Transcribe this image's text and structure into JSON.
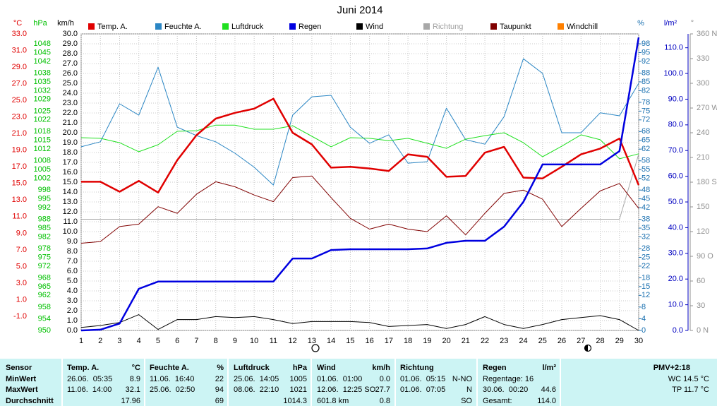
{
  "chart_data": {
    "type": "line",
    "title": "Juni 2014",
    "x": [
      1,
      2,
      3,
      4,
      5,
      6,
      7,
      8,
      9,
      10,
      11,
      12,
      13,
      14,
      15,
      16,
      17,
      18,
      19,
      20,
      21,
      22,
      23,
      24,
      25,
      26,
      27,
      28,
      29,
      30
    ],
    "xlim": [
      1,
      30
    ],
    "grid": true,
    "axes": [
      {
        "label": "°C",
        "color": "#e00000",
        "ylim": [
          -2.7,
          33
        ],
        "ticks": [
          {
            "value": -1,
            "label": "-1.0"
          },
          {
            "value": 1,
            "label": "1.0"
          },
          {
            "value": 3,
            "label": "3.0"
          },
          {
            "value": 5,
            "label": "5.0"
          },
          {
            "value": 7,
            "label": "7.0"
          },
          {
            "value": 9,
            "label": "9.0"
          },
          {
            "value": 11,
            "label": "11.0"
          },
          {
            "value": 13,
            "label": "13.0"
          },
          {
            "value": 15,
            "label": "15.0"
          },
          {
            "value": 17,
            "label": "17.0"
          },
          {
            "value": 19,
            "label": "19.0"
          },
          {
            "value": 21,
            "label": "21.0"
          },
          {
            "value": 23,
            "label": "23.0"
          },
          {
            "value": 25,
            "label": "25.0"
          },
          {
            "value": 27,
            "label": "27.0"
          },
          {
            "value": 29,
            "label": "29.0"
          },
          {
            "value": 31,
            "label": "31.0"
          },
          {
            "value": 33,
            "label": "33.0"
          }
        ]
      },
      {
        "label": "hPa",
        "color": "#00c000",
        "ylim": [
          950,
          1051.4
        ],
        "ticks": [
          950,
          954,
          958,
          962,
          965,
          968,
          972,
          975,
          978,
          982,
          985,
          988,
          992,
          995,
          998,
          1002,
          1005,
          1008,
          1012,
          1015,
          1018,
          1022,
          1025,
          1029,
          1032,
          1035,
          1038,
          1042,
          1045,
          1048
        ]
      },
      {
        "label": "km/h",
        "color": "#000000",
        "ylim": [
          0,
          30
        ],
        "ticks": [
          {
            "value": 0,
            "label": "0.0"
          },
          {
            "value": 1,
            "label": "1.0"
          },
          {
            "value": 2,
            "label": "2.0"
          },
          {
            "value": 3,
            "label": "3.0"
          },
          {
            "value": 4,
            "label": "4.0"
          },
          {
            "value": 5,
            "label": "5.0"
          },
          {
            "value": 6,
            "label": "6.0"
          },
          {
            "value": 7,
            "label": "7.0"
          },
          {
            "value": 8,
            "label": "8.0"
          },
          {
            "value": 9,
            "label": "9.0"
          },
          {
            "value": 10,
            "label": "10.0"
          },
          {
            "value": 11,
            "label": "11.0"
          },
          {
            "value": 12,
            "label": "12.0"
          },
          {
            "value": 13,
            "label": "13.0"
          },
          {
            "value": 14,
            "label": "14.0"
          },
          {
            "value": 15,
            "label": "15.0"
          },
          {
            "value": 16,
            "label": "16.0"
          },
          {
            "value": 17,
            "label": "17.0"
          },
          {
            "value": 18,
            "label": "18.0"
          },
          {
            "value": 19,
            "label": "19.0"
          },
          {
            "value": 20,
            "label": "20.0"
          },
          {
            "value": 21,
            "label": "21.0"
          },
          {
            "value": 22,
            "label": "22.0"
          },
          {
            "value": 23,
            "label": "23.0"
          },
          {
            "value": 24,
            "label": "24.0"
          },
          {
            "value": 25,
            "label": "25.0"
          },
          {
            "value": 26,
            "label": "26.0"
          },
          {
            "value": 27,
            "label": "27.0"
          },
          {
            "value": 28,
            "label": "28.0"
          },
          {
            "value": 29,
            "label": "29.0"
          },
          {
            "value": 30,
            "label": "30.0"
          }
        ]
      },
      {
        "label": "%",
        "color": "#1a70b0",
        "ylim": [
          0,
          101.4
        ],
        "ticks": [
          0,
          4,
          8,
          12,
          15,
          18,
          22,
          25,
          28,
          32,
          35,
          38,
          42,
          45,
          48,
          52,
          55,
          58,
          62,
          65,
          68,
          72,
          75,
          78,
          82,
          85,
          88,
          92,
          95,
          98
        ]
      },
      {
        "label": "l/m²",
        "color": "#0000c0",
        "ylim": [
          0,
          115.4
        ],
        "ticks": [
          {
            "value": 0,
            "label": "0.0"
          },
          {
            "value": 10,
            "label": "10.0"
          },
          {
            "value": 20,
            "label": "20.0"
          },
          {
            "value": 30,
            "label": "30.0"
          },
          {
            "value": 40,
            "label": "40.0"
          },
          {
            "value": 50,
            "label": "50.0"
          },
          {
            "value": 60,
            "label": "60.0"
          },
          {
            "value": 70,
            "label": "70.0"
          },
          {
            "value": 80,
            "label": "80.0"
          },
          {
            "value": 90,
            "label": "90.0"
          },
          {
            "value": 100,
            "label": "100.0"
          },
          {
            "value": 110,
            "label": "110.0"
          }
        ]
      },
      {
        "label": "°",
        "color": "#909090",
        "ylim": [
          0,
          360
        ],
        "ticks": [
          {
            "value": 0,
            "label": "0 N"
          },
          30,
          60,
          {
            "value": 90,
            "label": "90 O"
          },
          120,
          150,
          {
            "value": 180,
            "label": "180 S"
          },
          210,
          240,
          {
            "value": 270,
            "label": "270 W"
          },
          300,
          330,
          {
            "value": 360,
            "label": "360 N"
          }
        ]
      }
    ],
    "series": [
      {
        "name": "Temp. A.",
        "color": "#e00000",
        "axis": 0,
        "values": [
          15.2,
          15.2,
          14.0,
          15.3,
          13.9,
          17.8,
          20.8,
          22.8,
          23.5,
          24.0,
          25.2,
          21.1,
          19.7,
          16.9,
          17.0,
          16.8,
          16.5,
          18.5,
          18.2,
          15.8,
          15.9,
          18.7,
          19.4,
          15.7,
          15.6,
          17.0,
          18.5,
          19.2,
          20.4,
          14.8
        ]
      },
      {
        "name": "Feuchte A.",
        "color": "#2a86c4",
        "axis": 3,
        "values": [
          62.8,
          64.5,
          77.5,
          73.6,
          90.0,
          69.5,
          66.6,
          64.5,
          60.6,
          55.8,
          49.7,
          73.6,
          79.9,
          80.4,
          69.5,
          64.0,
          66.9,
          57.2,
          57.7,
          76.0,
          65.2,
          63.7,
          73.1,
          92.9,
          87.9,
          67.6,
          67.6,
          74.4,
          73.4,
          84.5
        ]
      },
      {
        "name": "Luftdruck",
        "color": "#20e020",
        "axis": 1,
        "values": [
          1015.9,
          1015.7,
          1014.2,
          1011.1,
          1013.5,
          1018.1,
          1018.3,
          1020.2,
          1020.2,
          1018.8,
          1018.8,
          1020.0,
          1016.4,
          1012.8,
          1015.9,
          1015.7,
          1014.9,
          1015.7,
          1014.0,
          1012.3,
          1015.4,
          1016.6,
          1017.6,
          1014.2,
          1009.4,
          1013.0,
          1016.9,
          1015.2,
          1008.7,
          1010.4
        ]
      },
      {
        "name": "Regen",
        "color": "#0000e0",
        "axis": 4,
        "values": [
          0.0,
          0.3,
          2.7,
          16.2,
          19.0,
          19.0,
          19.0,
          19.0,
          19.0,
          19.0,
          19.0,
          28.0,
          28.0,
          31.3,
          31.6,
          31.6,
          31.6,
          31.6,
          31.9,
          34.1,
          34.9,
          34.9,
          40.4,
          50.0,
          64.6,
          64.6,
          64.6,
          64.6,
          69.8,
          114.0
        ]
      },
      {
        "name": "Wind",
        "color": "#000000",
        "axis": 2,
        "values": [
          0.3,
          0.5,
          0.8,
          1.6,
          0.1,
          1.1,
          1.1,
          1.4,
          1.3,
          1.4,
          1.1,
          0.7,
          0.9,
          0.9,
          0.9,
          0.8,
          0.4,
          0.5,
          0.6,
          0.2,
          0.6,
          1.4,
          0.6,
          0.2,
          0.6,
          1.1,
          1.3,
          1.5,
          1.1,
          0.0
        ]
      },
      {
        "name": "Richtung",
        "color": "#a8a8a8",
        "axis": 5,
        "values": [
          135,
          135,
          135,
          135,
          135,
          135,
          135,
          135,
          135,
          135,
          135,
          135,
          135,
          135,
          135,
          135,
          135,
          135,
          135,
          135,
          135,
          135,
          135,
          135,
          135,
          135,
          135,
          135,
          135,
          214
        ]
      },
      {
        "name": "Taupunkt",
        "color": "#800000",
        "axis": 0,
        "values": [
          7.8,
          8.0,
          9.8,
          10.1,
          12.2,
          11.4,
          13.7,
          15.2,
          14.6,
          13.6,
          12.8,
          15.7,
          15.9,
          13.3,
          10.8,
          9.5,
          10.1,
          9.5,
          9.2,
          11.1,
          8.8,
          11.4,
          13.8,
          14.2,
          13.1,
          9.8,
          12.0,
          14.1,
          15.0,
          12.0
        ]
      },
      {
        "name": "Windchill",
        "color": "#ff8000",
        "axis": 0,
        "values": [
          15.2,
          15.2,
          14.0,
          15.3,
          13.9,
          17.8,
          20.8,
          22.8,
          23.5,
          24.0,
          25.2,
          21.1,
          19.7,
          16.9,
          17.0,
          16.8,
          16.5,
          18.5,
          18.2,
          15.8,
          15.9,
          18.7,
          19.4,
          15.7,
          15.6,
          17.0,
          18.5,
          19.2,
          20.4,
          14.8
        ]
      }
    ]
  },
  "table": {
    "rows": [
      [
        "Sensor",
        "Temp. A.",
        "°C",
        "Feuchte A.",
        "%",
        "Luftdruck",
        "hPa",
        "Wind",
        "km/h",
        "Richtung",
        null,
        "Regen",
        "l/m²",
        "PMV+2:18"
      ],
      [
        "MinWert",
        "26.06.  05:35",
        "8.9",
        "11.06.  16:40",
        "22",
        "25.06.  14:05",
        "1005",
        "01.06.  01:00",
        "0.0",
        "01.06.  05:15",
        "N-NO",
        "Regentage: 16",
        null,
        "WC 14.5 °C"
      ],
      [
        "MaxWert",
        "11.06.  14:00",
        "32.1",
        "25.06.  02:50",
        "94",
        "08.06.  22:10",
        "1021",
        "12.06.  12:25 SO",
        "27.7",
        "01.06.  07:05",
        "N",
        "30.06.  00:20",
        "44.6",
        "TP 11.7 °C"
      ],
      [
        "Durchschnitt",
        null,
        "17.96",
        null,
        "69",
        null,
        "1014.3",
        "601.8 km",
        "0.8",
        null,
        "SO",
        "Gesamt:",
        "114.0",
        null
      ]
    ]
  }
}
